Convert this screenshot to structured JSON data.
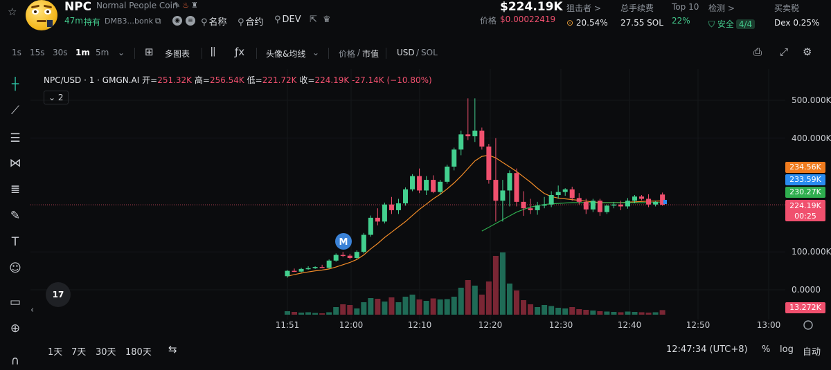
{
  "header": {
    "symbol": "NPC",
    "full_name": "Normal People Coin",
    "age": "47m",
    "hold_label": "持有",
    "address": "DMB3...bonk",
    "links": [
      {
        "label": "名称",
        "icon": "search-icon"
      },
      {
        "label": "合约",
        "icon": "search-icon"
      },
      {
        "label": "DEV",
        "icon": "search-icon"
      }
    ],
    "price_big": "$224.19K",
    "price_label": "价格",
    "price_value": "$0.00022419",
    "stats": [
      {
        "key": "狙击者 >",
        "value": "20.54%",
        "icon": "target-icon"
      },
      {
        "key": "总手续费",
        "value": "27.55 SOL"
      },
      {
        "key": "Top 10",
        "value": "22%"
      },
      {
        "key": "检测 >",
        "value": "安全",
        "badge": "4/4"
      },
      {
        "key": "买卖税",
        "value": "Dex 0.25%"
      }
    ]
  },
  "toolbar": {
    "timeframes": [
      "1s",
      "15s",
      "30s",
      "1m",
      "5m"
    ],
    "active_timeframe": "1m",
    "multi_chart": "多图表",
    "indicators": "头像&均线",
    "price_label": "价格",
    "mcap_label": "市值",
    "currency_usd": "USD",
    "currency_sol": "SOL"
  },
  "legend": {
    "pair": "NPC/USD · 1 · GMGN.AI",
    "open_label": "开=",
    "open": "251.32K",
    "high_label": "高=",
    "high": "256.54K",
    "low_label": "低=",
    "low": "221.72K",
    "close_label": "收=",
    "close": "224.19K",
    "change": "-27.14K (−10.80%)",
    "indicator_count": "2"
  },
  "axis_labels": {
    "y": [
      "500.000K",
      "400.000K",
      "100.000K",
      "0.0000"
    ],
    "x": [
      "11:51",
      "12:00",
      "12:10",
      "12:20",
      "12:30",
      "12:40",
      "12:50",
      "13:00"
    ]
  },
  "price_tags": {
    "orange": "234.56K",
    "blue": "233.59K",
    "green": "230.27K",
    "current": "224.19K",
    "countdown": "00:25",
    "volume": "13.272K"
  },
  "marker": "M",
  "tv_logo": "17",
  "bottom": {
    "ranges": [
      "1天",
      "7天",
      "30天",
      "180天"
    ],
    "clock": "12:47:34 (UTC+8)",
    "percent": "%",
    "log": "log",
    "auto": "自动"
  },
  "colors": {
    "up": "#43d08f",
    "down": "#f0506e",
    "ma_orange": "#f28c28",
    "ma_green": "#2fae4f",
    "blue_tag": "#2a8cf0",
    "orange_tag": "#f07c1e"
  },
  "chart_data": {
    "type": "candlestick",
    "pair": "NPC/USD",
    "interval": "1m",
    "yunit": "market cap (USD K)",
    "ylim": [
      -60,
      590
    ],
    "candles": [
      {
        "t": "11:53",
        "o": 36,
        "h": 52,
        "l": 32,
        "c": 50
      },
      {
        "t": "11:54",
        "o": 50,
        "h": 56,
        "l": 47,
        "c": 48
      },
      {
        "t": "11:55",
        "o": 48,
        "h": 58,
        "l": 46,
        "c": 55
      },
      {
        "t": "11:56",
        "o": 55,
        "h": 62,
        "l": 53,
        "c": 57
      },
      {
        "t": "11:57",
        "o": 57,
        "h": 62,
        "l": 55,
        "c": 60
      },
      {
        "t": "11:58",
        "o": 60,
        "h": 66,
        "l": 58,
        "c": 58
      },
      {
        "t": "11:59",
        "o": 58,
        "h": 80,
        "l": 56,
        "c": 77
      },
      {
        "t": "12:00",
        "o": 77,
        "h": 96,
        "l": 74,
        "c": 92
      },
      {
        "t": "12:01",
        "o": 92,
        "h": 100,
        "l": 86,
        "c": 90
      },
      {
        "t": "12:02",
        "o": 90,
        "h": 95,
        "l": 80,
        "c": 84
      },
      {
        "t": "12:03",
        "o": 84,
        "h": 104,
        "l": 80,
        "c": 100
      },
      {
        "t": "12:04",
        "o": 100,
        "h": 150,
        "l": 96,
        "c": 145
      },
      {
        "t": "12:05",
        "o": 145,
        "h": 196,
        "l": 140,
        "c": 190
      },
      {
        "t": "12:06",
        "o": 190,
        "h": 215,
        "l": 170,
        "c": 180
      },
      {
        "t": "12:07",
        "o": 180,
        "h": 230,
        "l": 175,
        "c": 225
      },
      {
        "t": "12:08",
        "o": 225,
        "h": 245,
        "l": 200,
        "c": 210
      },
      {
        "t": "12:09",
        "o": 210,
        "h": 240,
        "l": 200,
        "c": 228
      },
      {
        "t": "12:10",
        "o": 228,
        "h": 270,
        "l": 222,
        "c": 265
      },
      {
        "t": "12:11",
        "o": 265,
        "h": 305,
        "l": 260,
        "c": 300
      },
      {
        "t": "12:12",
        "o": 300,
        "h": 320,
        "l": 255,
        "c": 262
      },
      {
        "t": "12:13",
        "o": 262,
        "h": 300,
        "l": 250,
        "c": 290
      },
      {
        "t": "12:14",
        "o": 290,
        "h": 302,
        "l": 255,
        "c": 258
      },
      {
        "t": "12:15",
        "o": 258,
        "h": 290,
        "l": 250,
        "c": 285
      },
      {
        "t": "12:16",
        "o": 285,
        "h": 330,
        "l": 280,
        "c": 325
      },
      {
        "t": "12:17",
        "o": 325,
        "h": 375,
        "l": 315,
        "c": 370
      },
      {
        "t": "12:18",
        "o": 370,
        "h": 420,
        "l": 355,
        "c": 410
      },
      {
        "t": "12:19",
        "o": 410,
        "h": 505,
        "l": 395,
        "c": 405
      },
      {
        "t": "12:20",
        "o": 405,
        "h": 505,
        "l": 390,
        "c": 420
      },
      {
        "t": "12:21",
        "o": 420,
        "h": 428,
        "l": 370,
        "c": 378
      },
      {
        "t": "12:22",
        "o": 378,
        "h": 385,
        "l": 280,
        "c": 290
      },
      {
        "t": "12:23",
        "o": 290,
        "h": 400,
        "l": 180,
        "c": 235
      },
      {
        "t": "12:24",
        "o": 235,
        "h": 290,
        "l": 180,
        "c": 262
      },
      {
        "t": "12:25",
        "o": 262,
        "h": 315,
        "l": 220,
        "c": 308
      },
      {
        "t": "12:26",
        "o": 308,
        "h": 320,
        "l": 220,
        "c": 232
      },
      {
        "t": "12:27",
        "o": 232,
        "h": 260,
        "l": 195,
        "c": 215
      },
      {
        "t": "12:28",
        "o": 215,
        "h": 240,
        "l": 200,
        "c": 210
      },
      {
        "t": "12:29",
        "o": 210,
        "h": 232,
        "l": 198,
        "c": 222
      },
      {
        "t": "12:30",
        "o": 222,
        "h": 245,
        "l": 215,
        "c": 225
      },
      {
        "t": "12:31",
        "o": 225,
        "h": 260,
        "l": 218,
        "c": 250
      },
      {
        "t": "12:32",
        "o": 250,
        "h": 275,
        "l": 240,
        "c": 258
      },
      {
        "t": "12:33",
        "o": 258,
        "h": 268,
        "l": 248,
        "c": 265
      },
      {
        "t": "12:34",
        "o": 265,
        "h": 272,
        "l": 235,
        "c": 242
      },
      {
        "t": "12:35",
        "o": 242,
        "h": 255,
        "l": 225,
        "c": 232
      },
      {
        "t": "12:36",
        "o": 232,
        "h": 240,
        "l": 200,
        "c": 212
      },
      {
        "t": "12:37",
        "o": 212,
        "h": 240,
        "l": 205,
        "c": 235
      },
      {
        "t": "12:38",
        "o": 235,
        "h": 240,
        "l": 195,
        "c": 205
      },
      {
        "t": "12:39",
        "o": 205,
        "h": 225,
        "l": 200,
        "c": 222
      },
      {
        "t": "12:40",
        "o": 222,
        "h": 232,
        "l": 215,
        "c": 225
      },
      {
        "t": "12:41",
        "o": 225,
        "h": 235,
        "l": 210,
        "c": 220
      },
      {
        "t": "12:42",
        "o": 220,
        "h": 242,
        "l": 214,
        "c": 235
      },
      {
        "t": "12:43",
        "o": 235,
        "h": 250,
        "l": 228,
        "c": 246
      },
      {
        "t": "12:44",
        "o": 246,
        "h": 250,
        "l": 236,
        "c": 240
      },
      {
        "t": "12:45",
        "o": 240,
        "h": 252,
        "l": 218,
        "c": 225
      },
      {
        "t": "12:46",
        "o": 225,
        "h": 235,
        "l": 220,
        "c": 232
      },
      {
        "t": "12:47",
        "o": 251.32,
        "h": 256.54,
        "l": 221.72,
        "c": 224.19
      }
    ],
    "volume": [
      10,
      8,
      6,
      7,
      5,
      4,
      7,
      22,
      30,
      28,
      18,
      36,
      48,
      46,
      38,
      50,
      36,
      52,
      58,
      44,
      40,
      47,
      44,
      45,
      52,
      78,
      100,
      84,
      58,
      96,
      170,
      180,
      90,
      70,
      42,
      30,
      22,
      28,
      25,
      20,
      18,
      22,
      16,
      14,
      12,
      10,
      9,
      8,
      7,
      9,
      8,
      7,
      6,
      7,
      13.272
    ],
    "ma_orange": [
      36,
      40,
      44,
      47,
      50,
      52,
      55,
      60,
      66,
      72,
      80,
      92,
      108,
      122,
      138,
      152,
      166,
      180,
      196,
      212,
      226,
      240,
      252,
      266,
      282,
      300,
      320,
      340,
      352,
      355,
      348,
      336,
      324,
      312,
      298,
      284,
      268,
      254,
      246,
      242,
      240,
      238,
      236,
      234,
      232,
      230,
      230,
      230,
      230,
      231,
      232,
      233,
      234,
      234,
      234.56
    ],
    "ma_green_start_index": 28,
    "ma_green": [
      155,
      165,
      175,
      185,
      195,
      205,
      212,
      218,
      222,
      225,
      227,
      228,
      229,
      230,
      230,
      230,
      230,
      230,
      230,
      230,
      230,
      230,
      230,
      230,
      230,
      230,
      230.27
    ]
  }
}
